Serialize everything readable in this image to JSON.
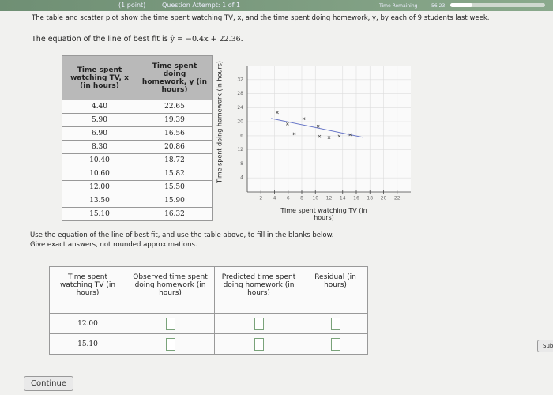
{
  "header": {
    "points": "(1 point)",
    "attempt": "Question Attempt: 1 of 1",
    "timer_label": "Time Remaining",
    "timer": "56:23"
  },
  "intro": "The table and scatter plot show the time spent watching TV, x, and the time spent doing homework, y, by each of 9 students last week.",
  "equation": {
    "prefix": "The equation of the line of best fit is",
    "formula": "ŷ = −0.4x + 22.36."
  },
  "data_table": {
    "headers": [
      "Time spent watching TV, x (in hours)",
      "Time spent doing homework, y (in hours)"
    ],
    "rows": [
      [
        "4.40",
        "22.65"
      ],
      [
        "5.90",
        "19.39"
      ],
      [
        "6.90",
        "16.56"
      ],
      [
        "8.30",
        "20.86"
      ],
      [
        "10.40",
        "18.72"
      ],
      [
        "10.60",
        "15.82"
      ],
      [
        "12.00",
        "15.50"
      ],
      [
        "13.50",
        "15.90"
      ],
      [
        "15.10",
        "16.32"
      ]
    ]
  },
  "chart_data": {
    "type": "scatter",
    "x_label": "Time spent watching TV (in hours)",
    "y_label": "Time spent doing homework (in hours)",
    "x": [
      4.4,
      5.9,
      6.9,
      8.3,
      10.4,
      10.6,
      12.0,
      13.5,
      15.1
    ],
    "values": [
      22.65,
      19.39,
      16.56,
      20.86,
      18.72,
      15.82,
      15.5,
      15.9,
      16.32
    ],
    "fit_line": {
      "x": [
        3.5,
        17
      ],
      "values": [
        20.96,
        15.56
      ]
    },
    "color": "#555",
    "line_color": "#6a78c8",
    "xlim": [
      0,
      24
    ],
    "ylim": [
      0,
      36
    ],
    "xticks": [
      2,
      4,
      6,
      8,
      10,
      12,
      14,
      16,
      18,
      20,
      22
    ],
    "yticks": [
      4,
      8,
      12,
      16,
      20,
      24,
      28,
      32
    ],
    "grid": true
  },
  "instructions": [
    "Use the equation of the line of best fit, and use the table above, to fill in the blanks below.",
    "Give exact answers, not rounded approximations."
  ],
  "answer_table": {
    "headers": [
      "Time spent watching TV (in hours)",
      "Observed time spent doing homework (in hours)",
      "Predicted time spent doing homework (in hours)",
      "Residual (in hours)"
    ],
    "rows": [
      [
        "12.00"
      ],
      [
        "15.10"
      ]
    ]
  },
  "buttons": {
    "continue": "Continue",
    "submit": "Sub"
  }
}
